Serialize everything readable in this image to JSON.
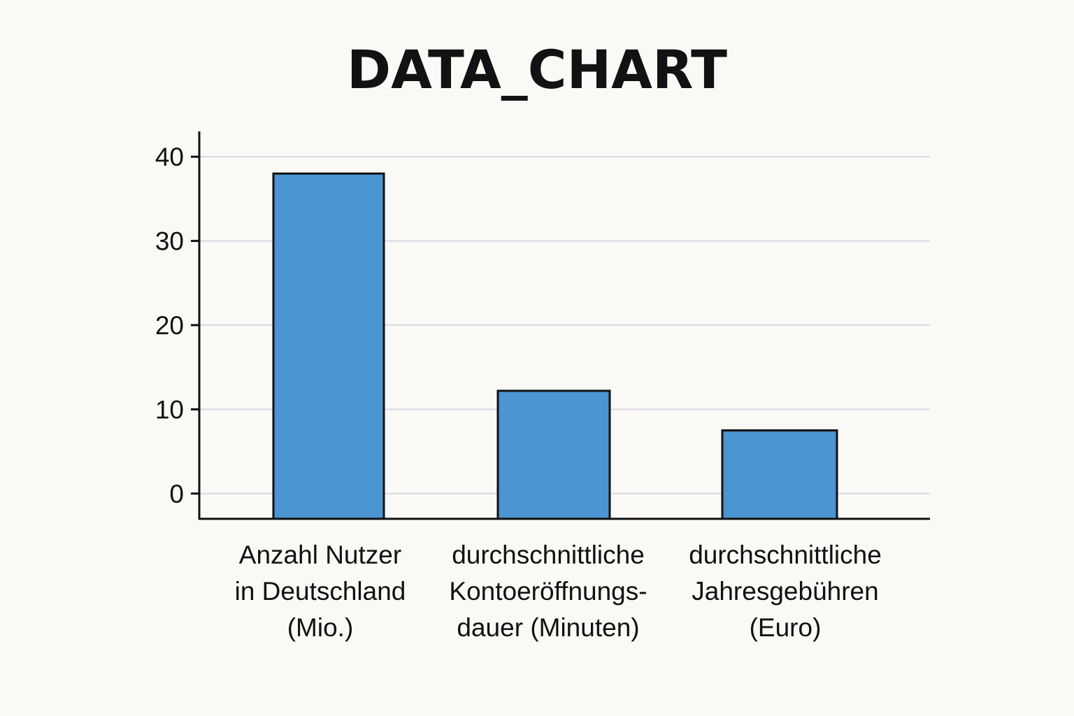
{
  "chart_data": {
    "type": "bar",
    "title": "DATA_CHART",
    "categories": [
      [
        "Anzahl Nutzer",
        "in Deutschland",
        "(Mio.)"
      ],
      [
        "durchschnittliche",
        "Kontoeröffnungs-",
        "dauer (Minuten)"
      ],
      [
        "durchschnittliche",
        "Jahresgebühren",
        "(Euro)"
      ]
    ],
    "values": [
      38,
      12.2,
      7.5
    ],
    "ylim": [
      -3,
      43
    ],
    "yticks": [
      0,
      10,
      20,
      30,
      40
    ],
    "grid": true,
    "bar_color": "#4a95d2",
    "bar_edge_color": "#111111",
    "grid_color": "#d8d8e2",
    "axis_color": "#111111"
  }
}
